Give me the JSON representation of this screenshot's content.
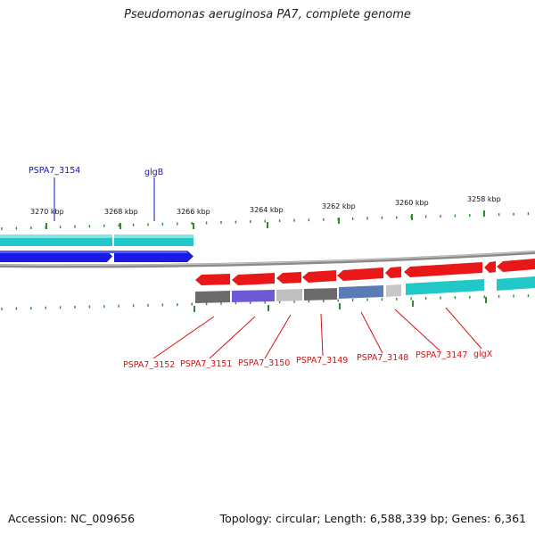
{
  "title": "Pseudomonas aeruginosa PA7, complete genome",
  "footer": {
    "accession": "Accession: NC_009656",
    "summary": "Topology: circular; Length: 6,588,339 bp; Genes: 6,361"
  },
  "colors": {
    "backbone": "#8a8a8a",
    "tick": "#2e8b2e",
    "label_top": "#1010d0",
    "label_bottom": "#d81010",
    "cyan": "#22c8c8",
    "blue": "#1a1ae6",
    "red": "#e81818"
  },
  "scale_labels": [
    "3270 kbp",
    "3268 kbp",
    "3266 kbp",
    "3264 kbp",
    "3262 kbp",
    "3260 kbp",
    "3258 kbp"
  ],
  "top_labels": [
    "PSPA7_3154",
    "glgB"
  ],
  "bottom_labels": [
    "PSPA7_3152",
    "PSPA7_3151",
    "PSPA7_3150",
    "PSPA7_3149",
    "PSPA7_3148",
    "PSPA7_3147",
    "glgX"
  ]
}
